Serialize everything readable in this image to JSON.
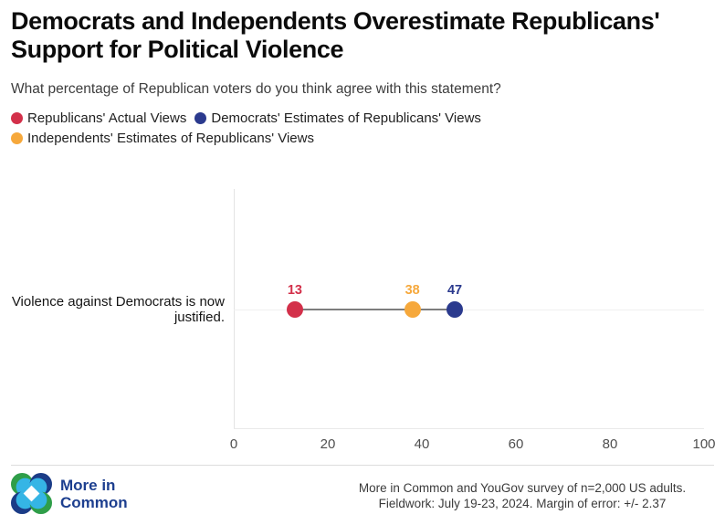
{
  "title": "Democrats and Independents Overestimate Republicans' Support for Political Violence",
  "subtitle": "What percentage of Republican voters do you think agree with this statement?",
  "legend": [
    {
      "label": "Republicans' Actual Views",
      "color": "#d3304a"
    },
    {
      "label": "Democrats' Estimates of Republicans' Views",
      "color": "#2b3a8e"
    },
    {
      "label": "Independents' Estimates of Republicans' Views",
      "color": "#f6a83b"
    }
  ],
  "chart_data": {
    "type": "scatter",
    "subtype": "dumbbell-dot-plot",
    "categories": [
      "Violence against Democrats is now justified."
    ],
    "series": [
      {
        "name": "Republicans' Actual Views",
        "values": [
          13
        ],
        "color": "#d3304a"
      },
      {
        "name": "Independents' Estimates of Republicans' Views",
        "values": [
          38
        ],
        "color": "#f6a83b"
      },
      {
        "name": "Democrats' Estimates of Republicans' Views",
        "values": [
          47
        ],
        "color": "#2b3a8e"
      }
    ],
    "xlabel": "",
    "ylabel": "",
    "xlim": [
      0,
      100
    ],
    "xticks": [
      0,
      20,
      40,
      60,
      80,
      100
    ],
    "connector": {
      "from": 13,
      "to": 47,
      "color": "#7d7d7d"
    },
    "grid": "zero-line-only",
    "legend_position": "top"
  },
  "footer": {
    "logo_line1": "More in",
    "logo_line2": "Common",
    "source_line1": "More in Common and YouGov survey of n=2,000 US adults.",
    "source_line2": "Fieldwork: July 19-23, 2024. Margin of error: +/- 2.37"
  },
  "colors": {
    "accent_red": "#d3304a",
    "accent_blue": "#2b3a8e",
    "accent_orange": "#f6a83b",
    "logo_navy": "#1d3f8f",
    "logo_green": "#2f9e49",
    "logo_cyan": "#35b5e5"
  }
}
